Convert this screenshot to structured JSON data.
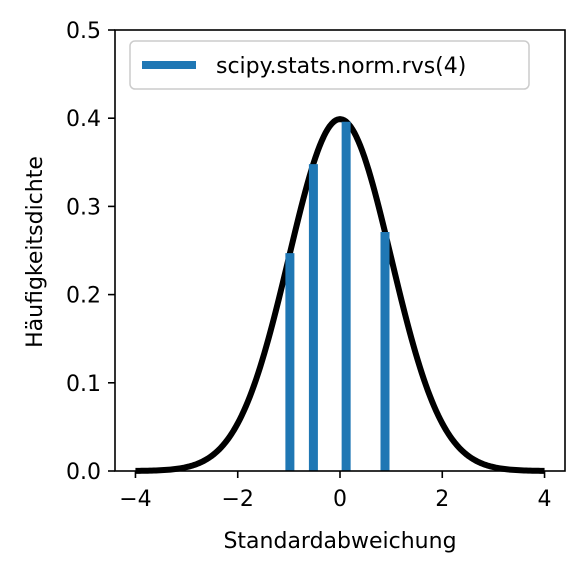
{
  "chart_data": {
    "type": "line",
    "title": "",
    "xlabel": "Standardabweichung",
    "ylabel": "Häufigkeitsdichte",
    "xlim": [
      -4.4,
      4.4
    ],
    "ylim": [
      0,
      0.5
    ],
    "xticks": [
      -4,
      -2,
      0,
      2,
      4
    ],
    "xtick_labels": [
      "−4",
      "−2",
      "0",
      "2",
      "4"
    ],
    "yticks": [
      0.0,
      0.1,
      0.2,
      0.3,
      0.4,
      0.5
    ],
    "ytick_labels": [
      "0.0",
      "0.1",
      "0.2",
      "0.3",
      "0.4",
      "0.5"
    ],
    "grid": false,
    "legend": {
      "position": "top-left",
      "entries": [
        "scipy.stats.norm.rvs(4)"
      ]
    },
    "series": [
      {
        "kind": "line",
        "function": "standard normal pdf",
        "x_range": [
          -4,
          4
        ],
        "color": "#000000"
      },
      {
        "kind": "vlines",
        "name": "scipy.stats.norm.rvs(4)",
        "x": [
          -0.98,
          -0.52,
          0.12,
          0.88
        ],
        "y": [
          0.247,
          0.348,
          0.396,
          0.271
        ],
        "color": "#1f77b4"
      }
    ]
  }
}
